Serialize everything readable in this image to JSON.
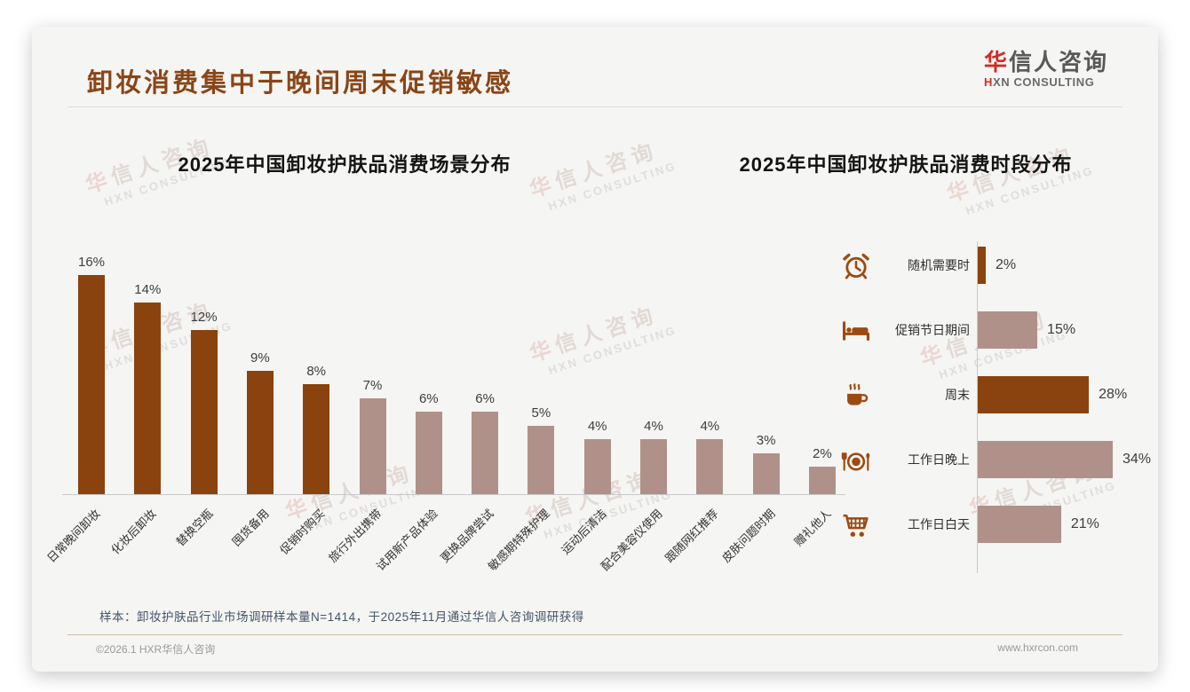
{
  "header": {
    "title": "卸妆消费集中于晚间周末促销敏感",
    "logo": {
      "cn_accent": "华",
      "cn_rest": "信人咨询",
      "en_accent": "H",
      "en_rest": "XN CONSULTING"
    }
  },
  "watermark": {
    "cn_accent": "华",
    "cn_rest": "信人咨询",
    "en": "HXN CONSULTING"
  },
  "colors": {
    "dark_brown": "#8A430E",
    "rosy_brown": "#AF918A",
    "title_brown": "#8a4517",
    "logo_red": "#cf2e26",
    "icon_brown": "#9c4a10"
  },
  "chart_data": [
    {
      "type": "bar",
      "title": "2025年中国卸妆护肤品消费场景分布",
      "unit": "%",
      "categories": [
        "日常晚间卸妆",
        "化妆后卸妆",
        "替换空瓶",
        "囤货备用",
        "促销时购买",
        "旅行外出携带",
        "试用新产品体验",
        "更换品牌尝试",
        "敏感期特殊护理",
        "运动后清洁",
        "配合美容仪使用",
        "跟随网红推荐",
        "皮肤问题时期",
        "赠礼他人"
      ],
      "values": [
        16,
        14,
        12,
        9,
        8,
        7,
        6,
        6,
        5,
        4,
        4,
        4,
        3,
        2
      ],
      "colors": [
        "#8A430E",
        "#8A430E",
        "#8A430E",
        "#8A430E",
        "#8A430E",
        "#AF918A",
        "#AF918A",
        "#AF918A",
        "#AF918A",
        "#AF918A",
        "#AF918A",
        "#AF918A",
        "#AF918A",
        "#AF918A"
      ],
      "ylim": [
        0,
        16
      ],
      "grid": false,
      "legend": "none",
      "value_label_position": "above-bar",
      "tick_label_rotation_deg": 45
    },
    {
      "type": "bar-horizontal",
      "title": "2025年中国卸妆护肤品消费时段分布",
      "unit": "%",
      "categories": [
        "随机需要时",
        "促销节日期间",
        "周末",
        "工作日晚上",
        "工作日白天"
      ],
      "values": [
        2,
        15,
        28,
        34,
        21
      ],
      "icons": [
        "alarm-clock-icon",
        "bed-icon",
        "coffee-cup-icon",
        "plate-cutlery-icon",
        "shopping-cart-icon"
      ],
      "colors": [
        "#8A430E",
        "#AF918A",
        "#8A430E",
        "#AF918A",
        "#AF918A"
      ],
      "xlim": [
        0,
        34
      ],
      "grid": false,
      "legend": "none",
      "value_label_position": "right-of-bar"
    }
  ],
  "footnote": "样本：卸妆护肤品行业市场调研样本量N=1414，于2025年11月通过华信人咨询调研获得",
  "footer": {
    "left": "©2026.1 HXR华信人咨询",
    "right": "www.hxrcon.com"
  }
}
